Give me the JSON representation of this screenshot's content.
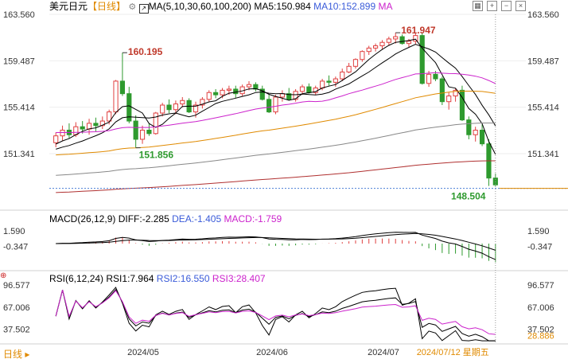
{
  "header": {
    "symbol": "美元日元",
    "period_tag": "【日线】",
    "ma_title": "MA(5,10,30,60,100,200)",
    "ma5_label": "MA5:150.984",
    "ma10_label": "MA10:152.899",
    "ma_extra": "MA"
  },
  "toolbar_icons": [
    "grid-icon",
    "plus-icon",
    "minus-icon",
    "close-icon"
  ],
  "price_axis": {
    "ticks": [
      "163.560",
      "159.487",
      "155.414",
      "151.341"
    ],
    "tick_values": [
      163.56,
      159.487,
      155.414,
      151.341
    ]
  },
  "price_annotations": {
    "high": "160.195",
    "low": "151.856",
    "peak": "161.947",
    "last": "148.504"
  },
  "macd_panel": {
    "title": "MACD(26,12,9)",
    "diff_label": "DIFF:-2.285",
    "dea_label": "DEA:-1.405",
    "macd_label": "MACD:-1.759",
    "ticks": [
      "1.590",
      "-0.347"
    ]
  },
  "rsi_panel": {
    "title": "RSI(6,12,24)",
    "rsi1_label": "RSI1:7.964",
    "rsi2_label": "RSI2:16.550",
    "rsi3_label": "RSI3:28.407",
    "ticks": [
      "96.577",
      "67.006",
      "37.502"
    ],
    "last_label": "28.886"
  },
  "x_axis": {
    "labels": [
      "2024/05",
      "2024/06",
      "2024/07"
    ],
    "cursor_date": "2024/07/12 星期五"
  },
  "footer": {
    "period_button": "日线"
  },
  "colors": {
    "up": "#e04040",
    "down": "#2e9a2e",
    "ma5": "#000000",
    "ma10": "#000000",
    "ma30": "#cc22cc",
    "ma60": "#e08a00",
    "ma100": "#888888",
    "ma200": "#b03030",
    "diff": "#000000",
    "dea": "#000000",
    "rsi1": "#000000",
    "rsi2": "#000000",
    "rsi3": "#cc22cc"
  },
  "chart_data": {
    "type": "candlestick",
    "x_labels": [
      "2024/05",
      "2024/06",
      "2024/07"
    ],
    "y_ticks": [
      163.56,
      159.487,
      155.414,
      151.341
    ],
    "candles": [
      [
        152.3,
        153.2,
        151.9,
        152.9
      ],
      [
        152.9,
        153.8,
        152.5,
        153.4
      ],
      [
        153.4,
        154.0,
        152.7,
        153.0
      ],
      [
        153.0,
        154.1,
        152.8,
        153.7
      ],
      [
        153.7,
        154.2,
        153.1,
        153.5
      ],
      [
        153.5,
        154.4,
        153.0,
        154.0
      ],
      [
        154.0,
        154.5,
        153.3,
        153.8
      ],
      [
        153.8,
        154.6,
        153.5,
        154.2
      ],
      [
        154.2,
        155.2,
        153.9,
        155.0
      ],
      [
        155.0,
        157.8,
        154.8,
        157.7
      ],
      [
        157.7,
        160.195,
        156.4,
        156.6
      ],
      [
        156.6,
        157.2,
        154.0,
        154.2
      ],
      [
        154.2,
        154.7,
        151.856,
        152.6
      ],
      [
        152.6,
        153.8,
        152.2,
        153.4
      ],
      [
        153.4,
        154.0,
        152.9,
        153.1
      ],
      [
        153.1,
        155.0,
        153.0,
        154.9
      ],
      [
        154.9,
        155.8,
        154.6,
        155.6
      ],
      [
        155.6,
        156.1,
        154.9,
        155.2
      ],
      [
        155.2,
        156.0,
        154.8,
        155.7
      ],
      [
        155.7,
        156.3,
        155.4,
        156.0
      ],
      [
        156.0,
        156.2,
        154.9,
        155.0
      ],
      [
        155.0,
        155.9,
        154.5,
        155.6
      ],
      [
        155.6,
        156.3,
        155.3,
        156.1
      ],
      [
        156.1,
        156.9,
        155.9,
        156.7
      ],
      [
        156.7,
        157.0,
        156.2,
        156.5
      ],
      [
        156.5,
        157.1,
        156.2,
        156.9
      ],
      [
        156.9,
        157.3,
        156.5,
        157.0
      ],
      [
        157.0,
        157.3,
        156.2,
        156.6
      ],
      [
        156.6,
        157.4,
        156.4,
        157.2
      ],
      [
        157.2,
        157.7,
        156.9,
        157.4
      ],
      [
        157.4,
        157.6,
        156.8,
        157.0
      ],
      [
        157.0,
        157.3,
        156.0,
        156.1
      ],
      [
        156.1,
        156.5,
        154.9,
        155.0
      ],
      [
        155.0,
        156.5,
        154.8,
        156.3
      ],
      [
        156.3,
        156.9,
        155.9,
        156.6
      ],
      [
        156.6,
        157.1,
        156.0,
        156.1
      ],
      [
        156.1,
        157.0,
        155.9,
        156.8
      ],
      [
        156.8,
        157.4,
        156.5,
        157.2
      ],
      [
        157.2,
        157.5,
        156.6,
        156.7
      ],
      [
        156.7,
        157.3,
        156.5,
        157.1
      ],
      [
        157.1,
        157.9,
        156.9,
        157.7
      ],
      [
        157.7,
        158.2,
        157.3,
        157.6
      ],
      [
        157.6,
        158.1,
        157.2,
        157.9
      ],
      [
        157.9,
        158.8,
        157.7,
        158.5
      ],
      [
        158.5,
        159.3,
        158.4,
        159.0
      ],
      [
        159.0,
        159.7,
        158.8,
        159.6
      ],
      [
        159.6,
        160.4,
        159.4,
        160.3
      ],
      [
        160.3,
        160.8,
        160.0,
        160.6
      ],
      [
        160.6,
        161.0,
        160.3,
        160.8
      ],
      [
        160.8,
        161.3,
        160.5,
        161.1
      ],
      [
        161.1,
        161.6,
        160.8,
        161.4
      ],
      [
        161.4,
        161.947,
        161.0,
        161.6
      ],
      [
        161.6,
        161.8,
        160.9,
        161.0
      ],
      [
        161.0,
        161.4,
        160.7,
        161.2
      ],
      [
        161.2,
        161.9,
        160.9,
        161.7
      ],
      [
        161.7,
        161.9,
        157.4,
        157.5
      ],
      [
        157.5,
        158.6,
        157.2,
        158.3
      ],
      [
        158.3,
        158.6,
        157.7,
        157.9
      ],
      [
        157.9,
        158.1,
        155.6,
        155.9
      ],
      [
        155.9,
        156.7,
        155.2,
        156.4
      ],
      [
        156.4,
        157.1,
        155.9,
        156.9
      ],
      [
        156.9,
        157.3,
        154.2,
        154.3
      ],
      [
        154.3,
        154.6,
        152.6,
        153.0
      ],
      [
        153.0,
        153.7,
        152.4,
        153.4
      ],
      [
        153.4,
        153.9,
        152.0,
        152.2
      ],
      [
        152.2,
        152.6,
        148.504,
        149.2
      ],
      [
        149.2,
        149.6,
        148.504,
        148.6
      ]
    ],
    "ma_series": [
      {
        "name": "MA5",
        "last": 150.984
      },
      {
        "name": "MA10",
        "last": 152.899
      }
    ],
    "macd": {
      "DIFF": -2.285,
      "DEA": -1.405,
      "MACD": -1.759
    },
    "rsi": {
      "RSI1": 7.964,
      "RSI2": 16.55,
      "RSI3": 28.407
    },
    "current_price": 148.504
  }
}
